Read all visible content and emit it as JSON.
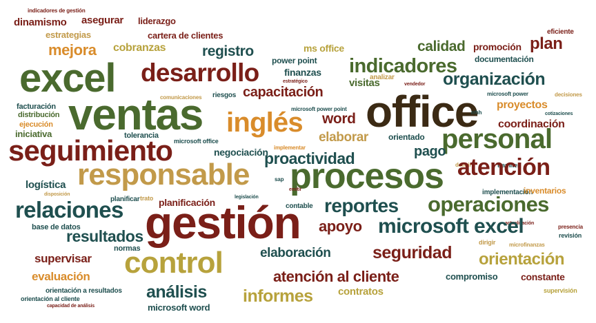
{
  "colors": {
    "olive": "#4a6a2e",
    "brown": "#7a1f18",
    "tan": "#c29a4a",
    "gold": "#b7a23c",
    "teal": "#1f4f4f",
    "orange": "#d98c2b",
    "dark": "#3b2a14"
  },
  "words": [
    {
      "text": "indicadores de gestión",
      "color": "brown"
    },
    {
      "text": "dinamismo",
      "color": "brown"
    },
    {
      "text": "asegurar",
      "color": "brown"
    },
    {
      "text": "liderazgo",
      "color": "brown"
    },
    {
      "text": "estrategias",
      "color": "tan"
    },
    {
      "text": "cartera de clientes",
      "color": "brown"
    },
    {
      "text": "eficiente",
      "color": "brown"
    },
    {
      "text": "mejora",
      "color": "orange"
    },
    {
      "text": "cobranzas",
      "color": "gold"
    },
    {
      "text": "registro",
      "color": "teal"
    },
    {
      "text": "ms office",
      "color": "gold"
    },
    {
      "text": "calidad",
      "color": "olive"
    },
    {
      "text": "promoción",
      "color": "brown"
    },
    {
      "text": "plan",
      "color": "brown"
    },
    {
      "text": "excel",
      "color": "olive"
    },
    {
      "text": "desarrollo",
      "color": "brown"
    },
    {
      "text": "power point",
      "color": "teal"
    },
    {
      "text": "finanzas",
      "color": "teal"
    },
    {
      "text": "indicadores",
      "color": "olive"
    },
    {
      "text": "documentación",
      "color": "teal"
    },
    {
      "text": "organización",
      "color": "teal"
    },
    {
      "text": "estratégico",
      "color": "brown"
    },
    {
      "text": "capacitación",
      "color": "brown"
    },
    {
      "text": "visitas",
      "color": "olive"
    },
    {
      "text": "analizar",
      "color": "tan"
    },
    {
      "text": "vendedor",
      "color": "brown"
    },
    {
      "text": "microsoft power",
      "color": "teal"
    },
    {
      "text": "decisiones",
      "color": "tan"
    },
    {
      "text": "comunicaciones",
      "color": "tan"
    },
    {
      "text": "riesgos",
      "color": "teal"
    },
    {
      "text": "ventas",
      "color": "olive"
    },
    {
      "text": "office",
      "color": "dark"
    },
    {
      "text": "proyectos",
      "color": "orange"
    },
    {
      "text": "facturación",
      "color": "teal"
    },
    {
      "text": "microsoft power point",
      "color": "teal"
    },
    {
      "text": "cotizaciones",
      "color": "teal"
    },
    {
      "text": "distribución",
      "color": "olive"
    },
    {
      "text": "inglés",
      "color": "orange"
    },
    {
      "text": "word",
      "color": "brown"
    },
    {
      "text": "rrhh",
      "color": "teal"
    },
    {
      "text": "ejecución",
      "color": "orange"
    },
    {
      "text": "coordinación",
      "color": "brown"
    },
    {
      "text": "iniciativa",
      "color": "olive"
    },
    {
      "text": "tolerancia",
      "color": "teal"
    },
    {
      "text": "orientado",
      "color": "teal"
    },
    {
      "text": "elaborar",
      "color": "tan"
    },
    {
      "text": "personal",
      "color": "olive"
    },
    {
      "text": "seguimiento",
      "color": "brown"
    },
    {
      "text": "microsoft office",
      "color": "teal"
    },
    {
      "text": "implementar",
      "color": "orange"
    },
    {
      "text": "pago",
      "color": "teal"
    },
    {
      "text": "negociación",
      "color": "teal"
    },
    {
      "text": "proactividad",
      "color": "teal"
    },
    {
      "text": "definir",
      "color": "tan"
    },
    {
      "text": "tramites",
      "color": "teal"
    },
    {
      "text": "atención",
      "color": "brown"
    },
    {
      "text": "responsable",
      "color": "tan"
    },
    {
      "text": "procesos",
      "color": "olive"
    },
    {
      "text": "logística",
      "color": "teal"
    },
    {
      "text": "sap",
      "color": "teal"
    },
    {
      "text": "emitir",
      "color": "brown"
    },
    {
      "text": "implementación",
      "color": "teal"
    },
    {
      "text": "disposición",
      "color": "tan"
    },
    {
      "text": "inventarios",
      "color": "orange"
    },
    {
      "text": "planificar",
      "color": "teal"
    },
    {
      "text": "trato",
      "color": "tan"
    },
    {
      "text": "planificación",
      "color": "brown"
    },
    {
      "text": "legislación",
      "color": "teal"
    },
    {
      "text": "relaciones",
      "color": "teal"
    },
    {
      "text": "reportes",
      "color": "teal"
    },
    {
      "text": "operaciones",
      "color": "olive"
    },
    {
      "text": "contable",
      "color": "teal"
    },
    {
      "text": "gestión",
      "color": "brown"
    },
    {
      "text": "base de datos",
      "color": "teal"
    },
    {
      "text": "actualización",
      "color": "brown"
    },
    {
      "text": "presencia",
      "color": "brown"
    },
    {
      "text": "resultados",
      "color": "teal"
    },
    {
      "text": "apoyo",
      "color": "brown"
    },
    {
      "text": "microsoft excel",
      "color": "teal"
    },
    {
      "text": "revisión",
      "color": "teal"
    },
    {
      "text": "normas",
      "color": "teal"
    },
    {
      "text": "dirigir",
      "color": "tan"
    },
    {
      "text": "microfinanzas",
      "color": "tan"
    },
    {
      "text": "supervisar",
      "color": "brown"
    },
    {
      "text": "control",
      "color": "gold"
    },
    {
      "text": "elaboración",
      "color": "teal"
    },
    {
      "text": "seguridad",
      "color": "brown"
    },
    {
      "text": "orientación",
      "color": "gold"
    },
    {
      "text": "evaluación",
      "color": "orange"
    },
    {
      "text": "compromiso",
      "color": "teal"
    },
    {
      "text": "constante",
      "color": "brown"
    },
    {
      "text": "atención al cliente",
      "color": "brown"
    },
    {
      "text": "análisis",
      "color": "teal"
    },
    {
      "text": "orientación a resultados",
      "color": "teal"
    },
    {
      "text": "orientación al cliente",
      "color": "teal"
    },
    {
      "text": "capacidad de análisis",
      "color": "brown"
    },
    {
      "text": "informes",
      "color": "gold"
    },
    {
      "text": "contratos",
      "color": "gold"
    },
    {
      "text": "microsoft word",
      "color": "teal"
    },
    {
      "text": "supervisión",
      "color": "gold"
    }
  ]
}
